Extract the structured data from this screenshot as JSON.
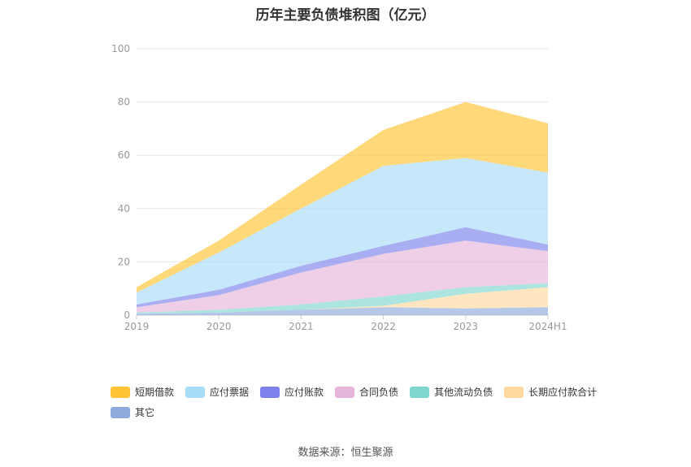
{
  "chart_data": {
    "type": "area",
    "title": "历年主要负债堆积图（亿元）",
    "categories": [
      "2019",
      "2020",
      "2021",
      "2022",
      "2023",
      "2024H1"
    ],
    "ylim": [
      0,
      100
    ],
    "yticks": [
      0,
      20,
      40,
      60,
      80,
      100
    ],
    "stacked": true,
    "grid": true,
    "legend_position": "bottom",
    "series": [
      {
        "name": "其它",
        "color": "#8faadc",
        "values": [
          0.5,
          1.0,
          2.0,
          3.0,
          2.5,
          3.0
        ]
      },
      {
        "name": "长期应付款合计",
        "color": "#ffd8a0",
        "values": [
          0,
          0,
          0,
          0.5,
          5.5,
          7.5
        ]
      },
      {
        "name": "其他流动负债",
        "color": "#7fd6d0",
        "values": [
          0.5,
          1.0,
          2.0,
          3.5,
          2.5,
          1.5
        ]
      },
      {
        "name": "合同负债",
        "color": "#e6b6dc",
        "values": [
          2.0,
          5.5,
          12.0,
          16.0,
          17.5,
          12.0
        ]
      },
      {
        "name": "应付账款",
        "color": "#7b83eb",
        "values": [
          1.0,
          2.0,
          2.5,
          3.0,
          5.0,
          2.5
        ]
      },
      {
        "name": "应付票据",
        "color": "#a7dcf8",
        "values": [
          4.5,
          14.0,
          21.5,
          30.0,
          26.0,
          27.0
        ]
      },
      {
        "name": "短期借款",
        "color": "#ffc333",
        "values": [
          2.0,
          4.5,
          9.0,
          13.5,
          21.0,
          18.5
        ]
      }
    ],
    "legend_order": [
      "短期借款",
      "应付票据",
      "应付账款",
      "合同负债",
      "其他流动负债",
      "长期应付款合计",
      "其它"
    ]
  },
  "source_text": "数据来源：恒生聚源"
}
